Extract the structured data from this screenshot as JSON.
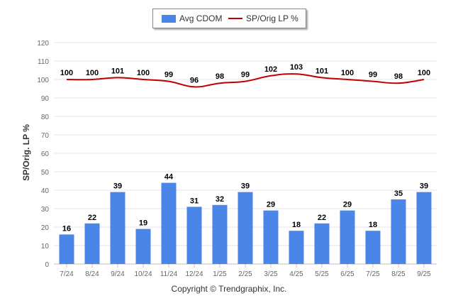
{
  "chart_data": {
    "type": "bar",
    "categories": [
      "7/24",
      "8/24",
      "9/24",
      "10/24",
      "11/24",
      "12/24",
      "1/25",
      "2/25",
      "3/25",
      "4/25",
      "5/25",
      "6/25",
      "7/25",
      "8/25",
      "9/25"
    ],
    "series": [
      {
        "name": "Avg CDOM",
        "type": "bar",
        "color": "#4a86e8",
        "values": [
          16,
          22,
          39,
          19,
          44,
          31,
          32,
          39,
          29,
          18,
          22,
          29,
          18,
          35,
          39
        ]
      },
      {
        "name": "SP/Orig LP %",
        "type": "line",
        "color": "#c00000",
        "values": [
          100,
          100,
          101,
          100,
          99,
          96,
          98,
          99,
          102,
          103,
          101,
          100,
          99,
          98,
          100
        ]
      }
    ],
    "ylabel": "SP/Orig. LP %",
    "xlabel": "",
    "ylim": [
      0,
      120
    ],
    "yticks": [
      0,
      10,
      20,
      30,
      40,
      50,
      60,
      70,
      80,
      90,
      100,
      110,
      120
    ],
    "grid": true,
    "legend": "top-center",
    "data_labels": true
  },
  "footer": {
    "copyright": "Copyright © Trendgraphix, Inc."
  }
}
